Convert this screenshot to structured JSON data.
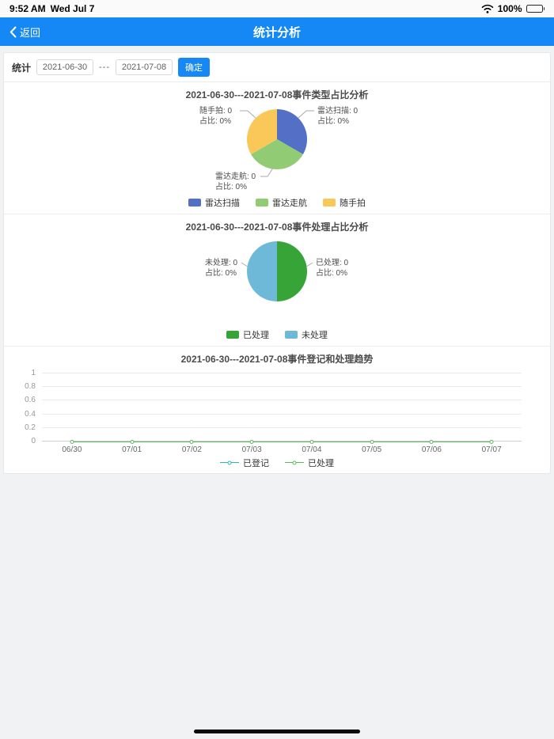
{
  "status_bar": {
    "time": "9:52 AM",
    "date": "Wed Jul 7",
    "battery_percent": "100%"
  },
  "nav": {
    "back_label": "返回",
    "title": "统计分析"
  },
  "filter": {
    "label": "统计",
    "start_date": "2021-06-30",
    "separator": "---",
    "end_date": "2021-07-08",
    "confirm_label": "确定"
  },
  "chart_data": [
    {
      "type": "pie",
      "title": "2021-06-30---2021-07-08事件类型占比分析",
      "slices": [
        {
          "name": "雷达扫描",
          "value": 0,
          "percent": "0%",
          "color": "#5470c6",
          "label_line1": "雷达扫描: 0",
          "label_line2": "占比: 0%"
        },
        {
          "name": "雷达走航",
          "value": 0,
          "percent": "0%",
          "color": "#91cc75",
          "label_line1": "雷达走航: 0",
          "label_line2": "占比: 0%"
        },
        {
          "name": "随手拍",
          "value": 0,
          "percent": "0%",
          "color": "#fac858",
          "label_line1": "随手拍: 0",
          "label_line2": "占比: 0%"
        }
      ],
      "legend": [
        "雷达扫描",
        "雷达走航",
        "随手拍"
      ]
    },
    {
      "type": "pie",
      "title": "2021-06-30---2021-07-08事件处理占比分析",
      "slices": [
        {
          "name": "已处理",
          "value": 0,
          "percent": "0%",
          "color": "#36a437",
          "label_line1": "已处理: 0",
          "label_line2": "占比: 0%"
        },
        {
          "name": "未处理",
          "value": 0,
          "percent": "0%",
          "color": "#6eb9d8",
          "label_line1": "未处理: 0",
          "label_line2": "占比: 0%"
        }
      ],
      "legend": [
        "已处理",
        "未处理"
      ]
    },
    {
      "type": "line",
      "title": "2021-06-30---2021-07-08事件登记和处理趋势",
      "x": [
        "06/30",
        "07/01",
        "07/02",
        "07/03",
        "07/04",
        "07/05",
        "07/06",
        "07/07"
      ],
      "series": [
        {
          "name": "已登记",
          "values": [
            0,
            0,
            0,
            0,
            0,
            0,
            0,
            0
          ],
          "color": "#2fb8b0"
        },
        {
          "name": "已处理",
          "values": [
            0,
            0,
            0,
            0,
            0,
            0,
            0,
            0
          ],
          "color": "#5cb85c"
        }
      ],
      "ylim": [
        0,
        1
      ],
      "yticks": [
        0,
        0.2,
        0.4,
        0.6,
        0.8,
        1
      ],
      "legend": [
        "已登记",
        "已处理"
      ]
    }
  ]
}
